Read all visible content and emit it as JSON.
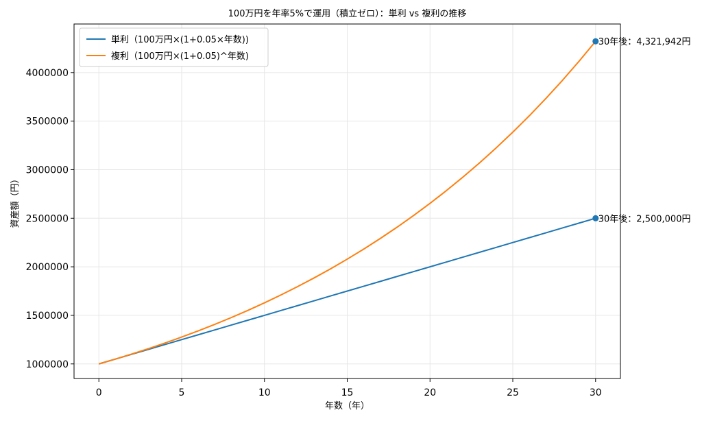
{
  "chart_data": {
    "type": "line",
    "title": "100万円を年率5%で運用（積立ゼロ）：単利 vs 複利の推移",
    "xlabel": "年数（年）",
    "ylabel": "資産額（円）",
    "xlim": [
      -1.5,
      31.5
    ],
    "ylim": [
      850000,
      4500000
    ],
    "xticks": [
      0,
      5,
      10,
      15,
      20,
      25,
      30
    ],
    "xtick_labels": [
      "0",
      "5",
      "10",
      "15",
      "20",
      "25",
      "30"
    ],
    "yticks": [
      1000000,
      1500000,
      2000000,
      2500000,
      3000000,
      3500000,
      4000000
    ],
    "ytick_labels": [
      "1000000",
      "1500000",
      "2000000",
      "2500000",
      "3000000",
      "3500000",
      "4000000"
    ],
    "grid": true,
    "legend_position": "top-left",
    "x": [
      0,
      1,
      2,
      3,
      4,
      5,
      6,
      7,
      8,
      9,
      10,
      11,
      12,
      13,
      14,
      15,
      16,
      17,
      18,
      19,
      20,
      21,
      22,
      23,
      24,
      25,
      26,
      27,
      28,
      29,
      30
    ],
    "series": [
      {
        "name": "単利（100万円×(1+0.05×年数))",
        "color": "#1f77b4",
        "values": [
          1000000,
          1050000,
          1100000,
          1150000,
          1200000,
          1250000,
          1300000,
          1350000,
          1400000,
          1450000,
          1500000,
          1550000,
          1600000,
          1650000,
          1700000,
          1750000,
          1800000,
          1850000,
          1900000,
          1950000,
          2000000,
          2050000,
          2100000,
          2150000,
          2200000,
          2250000,
          2300000,
          2350000,
          2400000,
          2450000,
          2500000
        ]
      },
      {
        "name": "複利（100万円×(1+0.05)^年数)",
        "color": "#ff7f0e",
        "values": [
          1000000,
          1050000,
          1102500,
          1157625,
          1215506,
          1276282,
          1340096,
          1407100,
          1477455,
          1551328,
          1628895,
          1710339,
          1795856,
          1885649,
          1979932,
          2078928,
          2182875,
          2292018,
          2406619,
          2526950,
          2653298,
          2785963,
          2925261,
          3071524,
          3225100,
          3386355,
          3555673,
          3733456,
          3920129,
          4116136,
          4321942
        ]
      }
    ],
    "markers": [
      {
        "x": 30,
        "y": 2500000,
        "color": "#1f77b4",
        "label": "30年後：2,500,000円"
      },
      {
        "x": 30,
        "y": 4321942,
        "color": "#1f77b4",
        "label": "30年後：4,321,942円"
      }
    ]
  }
}
